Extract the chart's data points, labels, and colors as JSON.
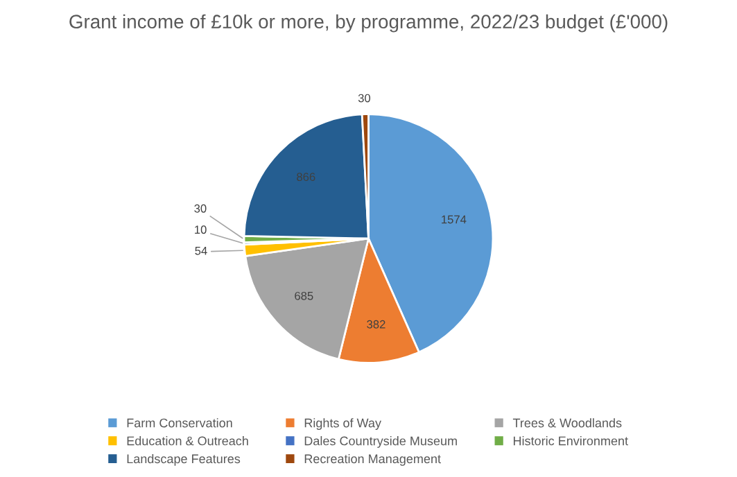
{
  "chart_data": {
    "type": "pie",
    "title": "Grant income of £10k or more, by programme, 2022/23 budget (£'000)",
    "categories": [
      "Farm Conservation",
      "Rights of Way",
      "Trees & Woodlands",
      "Education & Outreach",
      "Dales Countryside Museum",
      "Historic Environment",
      "Landscape Features",
      "Recreation Management"
    ],
    "values": [
      1574,
      382,
      685,
      54,
      10,
      30,
      866,
      30
    ],
    "colors": [
      "#5b9bd5",
      "#ed7d31",
      "#a5a5a5",
      "#ffc000",
      "#4472c4",
      "#70ad47",
      "#255e91",
      "#9e480e"
    ],
    "data_labels": true,
    "legend": "bottom"
  }
}
